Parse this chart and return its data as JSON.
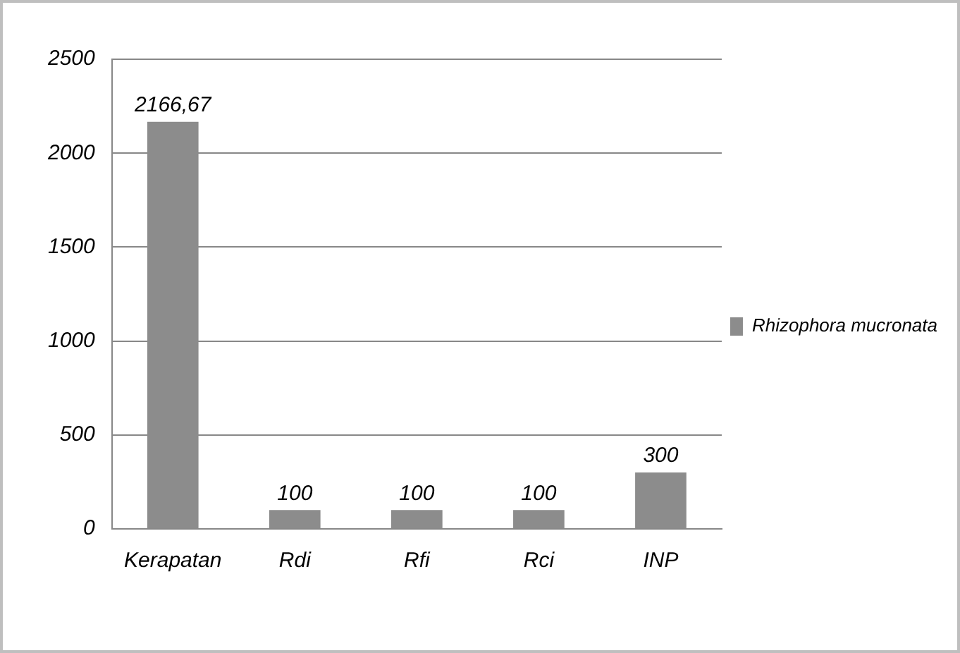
{
  "chart_data": {
    "type": "bar",
    "categories": [
      "Kerapatan",
      "Rdi",
      "Rfi",
      "Rci",
      "INP"
    ],
    "series": [
      {
        "name": "Rhizophora mucronata",
        "color": "#8c8c8c",
        "values": [
          2166.67,
          100,
          100,
          100,
          300
        ],
        "value_labels": [
          "2166,67",
          "100",
          "100",
          "100",
          "300"
        ]
      }
    ],
    "ylim": [
      0,
      2500
    ],
    "yticks": [
      0,
      500,
      1000,
      1500,
      2000,
      2500
    ],
    "grid": "y",
    "legend": "right"
  }
}
